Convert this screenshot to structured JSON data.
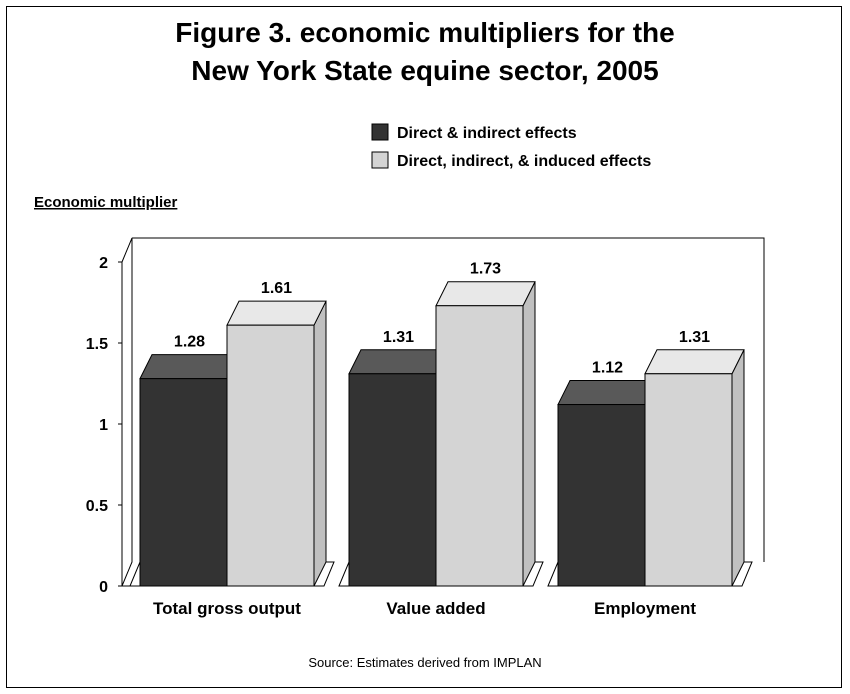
{
  "chart_data": {
    "type": "bar",
    "title_lines": [
      "Figure 3. economic multipliers for the",
      "New York State equine sector, 2005"
    ],
    "ylabel": "Economic multiplier",
    "categories": [
      "Total gross output",
      "Value added",
      "Employment"
    ],
    "series": [
      {
        "name": "Direct & indirect effects",
        "values": [
          1.28,
          1.31,
          1.12
        ],
        "color": "#333333",
        "top_color": "#595959",
        "side_color": "#444444"
      },
      {
        "name": "Direct, indirect, & induced effects",
        "values": [
          1.61,
          1.73,
          1.31
        ],
        "color": "#d4d4d4",
        "top_color": "#e8e8e8",
        "side_color": "#c0c0c0"
      }
    ],
    "data_labels": [
      [
        "1.28",
        "1.31",
        "1.12"
      ],
      [
        "1.61",
        "1.73",
        "1.31"
      ]
    ],
    "ylim": [
      0,
      2
    ],
    "yticks": [
      0,
      0.5,
      1,
      1.5,
      2
    ],
    "ytick_labels": [
      "0",
      "0.5",
      "1",
      "1.5",
      "2"
    ],
    "legend_position": "top-right",
    "grid": false,
    "source": "Source: Estimates derived from IMPLAN"
  }
}
